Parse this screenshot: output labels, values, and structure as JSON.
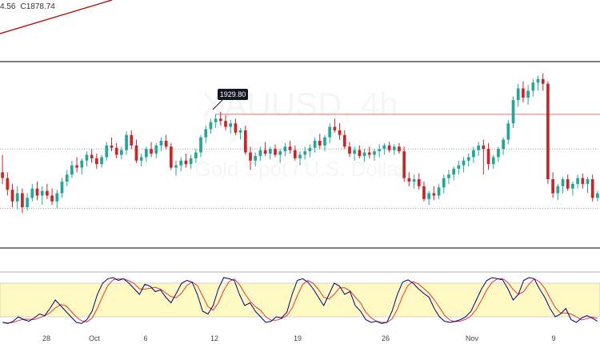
{
  "readout": {
    "prefix": "4.56",
    "close_label": "C",
    "close_value": "1878.74"
  },
  "price_callout": {
    "label": "1929.80"
  },
  "watermark": {
    "symbol": "XAUUSD, 4h",
    "name": "Gold Spot / U.S. Dollar"
  },
  "colors": {
    "up": "#26a69a",
    "down": "#c62828",
    "line": "#b71c1c",
    "stoch_k": "#000080",
    "stoch_d": "#e53935",
    "stoch_band": "#fff9c4"
  },
  "chart_data": [
    {
      "type": "candlestick",
      "title": "",
      "x_ticks": [
        "28",
        "Oct",
        "6",
        "12",
        "19",
        "26",
        "Nov",
        "9"
      ],
      "resistance_level": 1929.8,
      "support_level": 1849,
      "mid_level": 1900,
      "trend_line": {
        "from": 1940,
        "to": 1965
      },
      "candles": [
        [
          1880,
          1895,
          1870,
          1875
        ],
        [
          1875,
          1880,
          1860,
          1865
        ],
        [
          1865,
          1870,
          1850,
          1855
        ],
        [
          1855,
          1868,
          1848,
          1862
        ],
        [
          1862,
          1866,
          1845,
          1850
        ],
        [
          1850,
          1862,
          1847,
          1858
        ],
        [
          1858,
          1870,
          1855,
          1866
        ],
        [
          1866,
          1872,
          1856,
          1860
        ],
        [
          1860,
          1868,
          1852,
          1864
        ],
        [
          1864,
          1870,
          1857,
          1860
        ],
        [
          1860,
          1866,
          1852,
          1855
        ],
        [
          1855,
          1865,
          1849,
          1862
        ],
        [
          1862,
          1875,
          1858,
          1872
        ],
        [
          1872,
          1882,
          1868,
          1878
        ],
        [
          1878,
          1890,
          1875,
          1886
        ],
        [
          1886,
          1893,
          1880,
          1884
        ],
        [
          1884,
          1892,
          1878,
          1890
        ],
        [
          1890,
          1898,
          1885,
          1895
        ],
        [
          1895,
          1900,
          1888,
          1892
        ],
        [
          1892,
          1896,
          1883,
          1887
        ],
        [
          1887,
          1895,
          1884,
          1893
        ],
        [
          1893,
          1906,
          1890,
          1903
        ],
        [
          1903,
          1910,
          1898,
          1901
        ],
        [
          1901,
          1905,
          1892,
          1895
        ],
        [
          1895,
          1902,
          1891,
          1899
        ],
        [
          1899,
          1915,
          1895,
          1912
        ],
        [
          1912,
          1916,
          1900,
          1903
        ],
        [
          1903,
          1908,
          1888,
          1890
        ],
        [
          1890,
          1896,
          1885,
          1893
        ],
        [
          1893,
          1902,
          1889,
          1900
        ],
        [
          1900,
          1906,
          1893,
          1896
        ],
        [
          1896,
          1905,
          1892,
          1903
        ],
        [
          1903,
          1910,
          1898,
          1907
        ],
        [
          1907,
          1912,
          1900,
          1902
        ],
        [
          1902,
          1905,
          1882,
          1884
        ],
        [
          1884,
          1890,
          1877,
          1886
        ],
        [
          1886,
          1893,
          1881,
          1890
        ],
        [
          1890,
          1896,
          1884,
          1887
        ],
        [
          1887,
          1895,
          1883,
          1892
        ],
        [
          1892,
          1900,
          1888,
          1897
        ],
        [
          1897,
          1912,
          1893,
          1910
        ],
        [
          1910,
          1920,
          1905,
          1917
        ],
        [
          1917,
          1926,
          1913,
          1923
        ],
        [
          1923,
          1930,
          1918,
          1926
        ],
        [
          1926,
          1932,
          1920,
          1924
        ],
        [
          1924,
          1929,
          1916,
          1919
        ],
        [
          1919,
          1925,
          1913,
          1922
        ],
        [
          1922,
          1926,
          1912,
          1914
        ],
        [
          1914,
          1918,
          1908,
          1916
        ],
        [
          1916,
          1920,
          1895,
          1897
        ],
        [
          1897,
          1902,
          1882,
          1890
        ],
        [
          1890,
          1897,
          1885,
          1894
        ],
        [
          1894,
          1902,
          1890,
          1899
        ],
        [
          1899,
          1906,
          1894,
          1896
        ],
        [
          1896,
          1902,
          1891,
          1900
        ],
        [
          1900,
          1904,
          1893,
          1895
        ],
        [
          1895,
          1900,
          1888,
          1898
        ],
        [
          1898,
          1905,
          1894,
          1902
        ],
        [
          1902,
          1907,
          1896,
          1899
        ],
        [
          1899,
          1903,
          1890,
          1892
        ],
        [
          1892,
          1898,
          1886,
          1895
        ],
        [
          1895,
          1902,
          1891,
          1898
        ],
        [
          1898,
          1904,
          1893,
          1901
        ],
        [
          1901,
          1910,
          1897,
          1907
        ],
        [
          1907,
          1913,
          1900,
          1903
        ],
        [
          1903,
          1912,
          1898,
          1910
        ],
        [
          1910,
          1922,
          1905,
          1919
        ],
        [
          1919,
          1926,
          1914,
          1916
        ],
        [
          1916,
          1922,
          1908,
          1912
        ],
        [
          1912,
          1916,
          1900,
          1902
        ],
        [
          1902,
          1906,
          1893,
          1896
        ],
        [
          1896,
          1902,
          1890,
          1899
        ],
        [
          1899,
          1903,
          1892,
          1894
        ],
        [
          1894,
          1900,
          1889,
          1897
        ],
        [
          1897,
          1902,
          1892,
          1895
        ],
        [
          1895,
          1900,
          1890,
          1898
        ],
        [
          1898,
          1904,
          1893,
          1900
        ],
        [
          1900,
          1905,
          1895,
          1903
        ],
        [
          1903,
          1906,
          1897,
          1899
        ],
        [
          1899,
          1904,
          1895,
          1902
        ],
        [
          1902,
          1905,
          1896,
          1898
        ],
        [
          1898,
          1902,
          1872,
          1875
        ],
        [
          1875,
          1880,
          1868,
          1872
        ],
        [
          1872,
          1878,
          1866,
          1874
        ],
        [
          1874,
          1879,
          1865,
          1868
        ],
        [
          1868,
          1872,
          1855,
          1857
        ],
        [
          1857,
          1864,
          1852,
          1862
        ],
        [
          1862,
          1868,
          1856,
          1860
        ],
        [
          1860,
          1870,
          1857,
          1867
        ],
        [
          1867,
          1878,
          1862,
          1875
        ],
        [
          1875,
          1882,
          1870,
          1878
        ],
        [
          1878,
          1885,
          1873,
          1883
        ],
        [
          1883,
          1890,
          1878,
          1886
        ],
        [
          1886,
          1893,
          1880,
          1890
        ],
        [
          1890,
          1896,
          1885,
          1893
        ],
        [
          1893,
          1902,
          1888,
          1899
        ],
        [
          1899,
          1906,
          1894,
          1903
        ],
        [
          1903,
          1908,
          1878,
          1900
        ],
        [
          1900,
          1905,
          1882,
          1887
        ],
        [
          1887,
          1895,
          1883,
          1893
        ],
        [
          1893,
          1902,
          1889,
          1900
        ],
        [
          1900,
          1910,
          1895,
          1908
        ],
        [
          1908,
          1925,
          1904,
          1922
        ],
        [
          1922,
          1945,
          1918,
          1942
        ],
        [
          1942,
          1956,
          1936,
          1952
        ],
        [
          1952,
          1958,
          1940,
          1944
        ],
        [
          1944,
          1955,
          1938,
          1950
        ],
        [
          1950,
          1960,
          1945,
          1957
        ],
        [
          1957,
          1963,
          1950,
          1960
        ],
        [
          1960,
          1965,
          1950,
          1956
        ],
        [
          1956,
          1958,
          1870,
          1874
        ],
        [
          1874,
          1880,
          1858,
          1862
        ],
        [
          1862,
          1870,
          1856,
          1868
        ],
        [
          1868,
          1876,
          1862,
          1874
        ],
        [
          1874,
          1878,
          1864,
          1866
        ],
        [
          1866,
          1872,
          1860,
          1870
        ],
        [
          1870,
          1878,
          1866,
          1875
        ],
        [
          1875,
          1879,
          1866,
          1870
        ],
        [
          1870,
          1876,
          1862,
          1874
        ],
        [
          1874,
          1878,
          1855,
          1858
        ],
        [
          1858,
          1864,
          1855,
          1862
        ]
      ],
      "stochastic": {
        "upper": 80,
        "lower": 20,
        "range": [
          0,
          100
        ],
        "k": [
          10,
          8,
          12,
          20,
          15,
          12,
          18,
          25,
          22,
          35,
          50,
          40,
          30,
          20,
          10,
          8,
          15,
          30,
          60,
          80,
          88,
          90,
          85,
          88,
          80,
          70,
          60,
          78,
          75,
          65,
          68,
          55,
          45,
          62,
          80,
          85,
          82,
          60,
          30,
          25,
          40,
          70,
          90,
          88,
          85,
          60,
          40,
          45,
          30,
          20,
          10,
          12,
          20,
          18,
          28,
          60,
          85,
          88,
          82,
          70,
          55,
          40,
          60,
          80,
          75,
          60,
          65,
          40,
          30,
          15,
          10,
          12,
          8,
          10,
          30,
          60,
          82,
          86,
          80,
          70,
          62,
          55,
          35,
          20,
          12,
          10,
          12,
          15,
          20,
          30,
          50,
          70,
          85,
          90,
          88,
          86,
          70,
          50,
          60,
          85,
          90,
          88,
          70,
          55,
          35,
          20,
          25,
          35,
          15,
          10,
          18,
          22,
          18,
          12
        ]
      }
    }
  ]
}
